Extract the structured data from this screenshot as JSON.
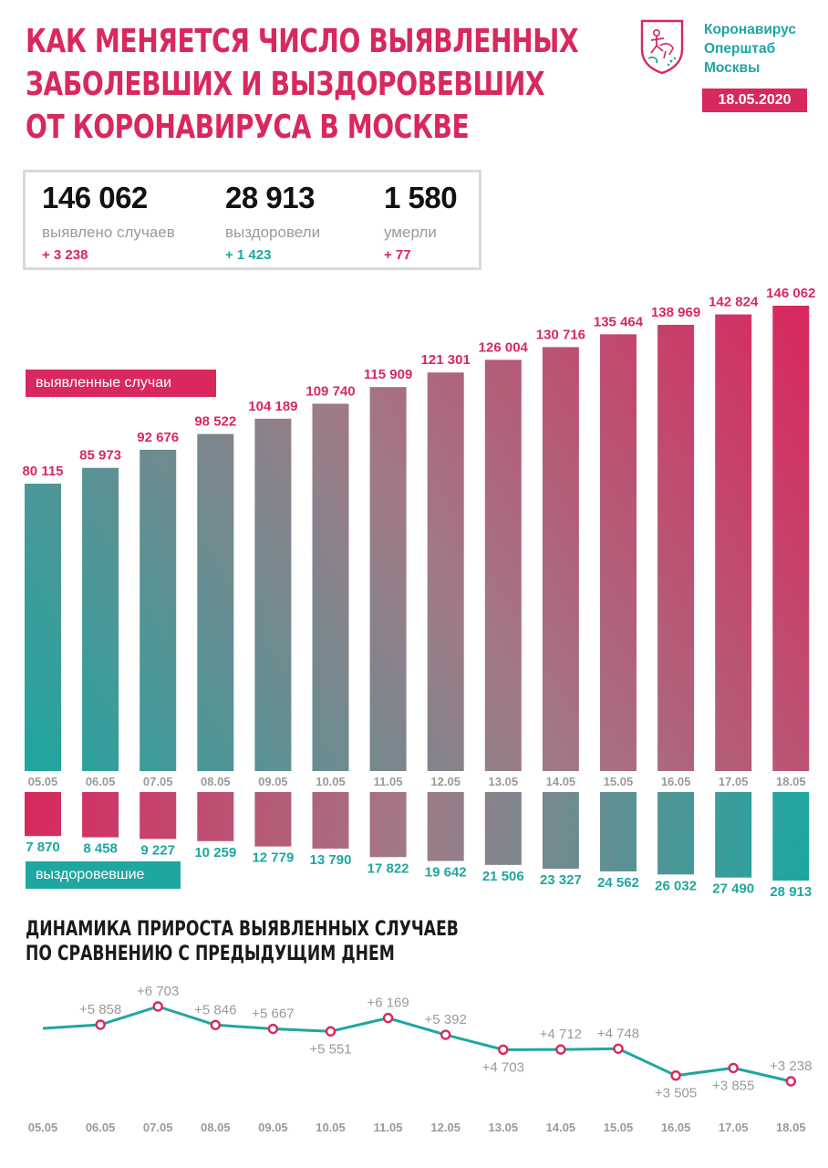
{
  "header": {
    "title_lines": [
      "КАК МЕНЯЕТСЯ ЧИСЛО ВЫЯВЛЕННЫХ",
      "ЗАБОЛЕВШИХ И ВЫЗДОРОВЕВШИХ",
      "ОТ КОРОНАВИРУСА В МОСКВЕ"
    ],
    "brand_lines": [
      "Коронавирус",
      "Оперштаб",
      "Москвы"
    ],
    "date": "18.05.2020",
    "emblem_icon": "moscow-coat-of-arms-icon"
  },
  "summary": {
    "cases": {
      "value": "146 062",
      "label": "выявлено случаев",
      "delta": "+ 3 238"
    },
    "recovered": {
      "value": "28 913",
      "label": "выздоровели",
      "delta": "+ 1 423"
    },
    "deaths": {
      "value": "1 580",
      "label": "умерли",
      "delta": "+ 77"
    }
  },
  "legend": {
    "cases": "выявленные случаи",
    "recovered": "выздоровевшие"
  },
  "colors": {
    "pink": "#d8285e",
    "teal": "#1fa6a0",
    "gray_text": "#9a9a9a"
  },
  "line_section": {
    "title_lines": [
      "ДИНАМИКА ПРИРОСТА ВЫЯВЛЕННЫХ СЛУЧАЕВ",
      "ПО СРАВНЕНИЮ С ПРЕДЫДУЩИМ ДНЕМ"
    ]
  },
  "chart_data": [
    {
      "type": "bar",
      "categories": [
        "05.05",
        "06.05",
        "07.05",
        "08.05",
        "09.05",
        "10.05",
        "11.05",
        "12.05",
        "13.05",
        "14.05",
        "15.05",
        "16.05",
        "17.05",
        "18.05"
      ],
      "series": [
        {
          "name": "выявленные случаи",
          "values": [
            80115,
            85973,
            92676,
            98522,
            104189,
            109740,
            115909,
            121301,
            126004,
            130716,
            135464,
            138969,
            142824,
            146062
          ],
          "labels": [
            "80 115",
            "85 973",
            "92 676",
            "98 522",
            "104 189",
            "109 740",
            "115 909",
            "121 301",
            "126 004",
            "130 716",
            "135 464",
            "138 969",
            "142 824",
            "146 062"
          ]
        },
        {
          "name": "выздоровевшие",
          "values": [
            7870,
            8458,
            9227,
            10259,
            12779,
            13790,
            17822,
            19642,
            21506,
            23327,
            24562,
            26032,
            27490,
            28913
          ],
          "labels": [
            "7 870",
            "8 458",
            "9 227",
            "10 259",
            "12 779",
            "13 790",
            "17 822",
            "19 642",
            "21 506",
            "23 327",
            "24 562",
            "26 032",
            "27 490",
            "28 913"
          ]
        }
      ],
      "ylim": [
        0,
        146062
      ],
      "recovered_ylim": [
        0,
        28913
      ],
      "grid": false
    },
    {
      "type": "line",
      "title": "ДИНАМИКА ПРИРОСТА ВЫЯВЛЕННЫХ СЛУЧАЕВ ПО СРАВНЕНИЮ С ПРЕДЫДУЩИМ ДНЕМ",
      "categories": [
        "05.05",
        "06.05",
        "07.05",
        "08.05",
        "09.05",
        "10.05",
        "11.05",
        "12.05",
        "13.05",
        "14.05",
        "15.05",
        "16.05",
        "17.05",
        "18.05"
      ],
      "values": [
        null,
        5858,
        6703,
        5846,
        5667,
        5551,
        6169,
        5392,
        4703,
        4712,
        4748,
        3505,
        3855,
        3238
      ],
      "labels": [
        "",
        "+5 858",
        "+6 703",
        "+5 846",
        "+5 667",
        "+5 551",
        "+6 169",
        "+5 392",
        "+4 703",
        "+4 712",
        "+4 748",
        "+3 505",
        "+3 855",
        "+3 238"
      ],
      "grid": false
    }
  ]
}
